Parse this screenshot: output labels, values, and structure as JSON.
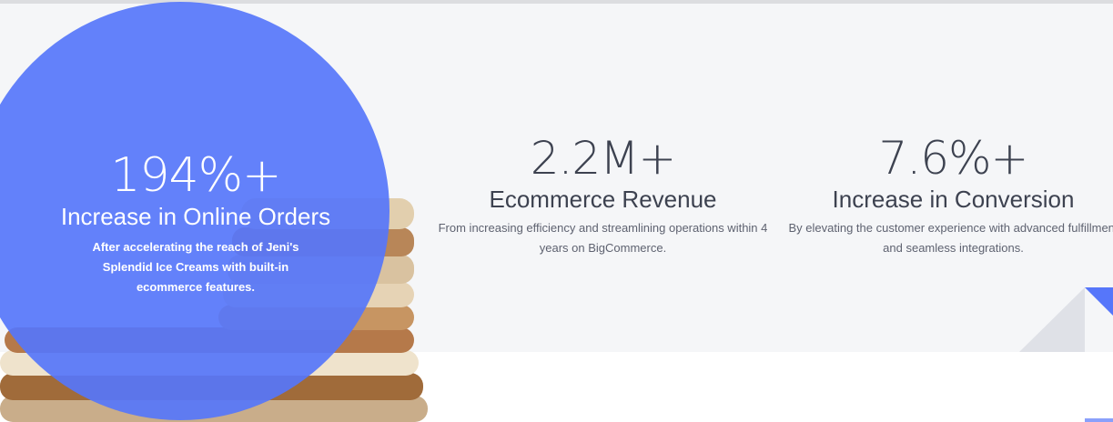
{
  "colors": {
    "accent": "#5676fa",
    "background": "#f5f6f8",
    "text": "#3d4250"
  },
  "stats": [
    {
      "value": "194%+",
      "heading": "Increase in Online Orders",
      "description": "After accelerating the reach of Jeni's Splendid Ice Creams with built-in ecommerce features."
    },
    {
      "value": "2.2M+",
      "heading": "Ecommerce Revenue",
      "description": "From increasing efficiency and streamlining operations within 4 years on BigCommerce."
    },
    {
      "value": "7.6%+",
      "heading": "Increase in Conversion",
      "description": "By elevating the customer experience with advanced fulfillment and seamless integrations."
    }
  ]
}
